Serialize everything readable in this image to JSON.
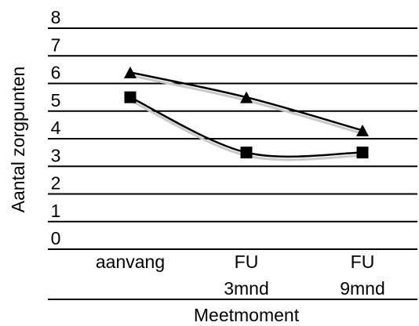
{
  "chart_data": {
    "type": "line",
    "title": "",
    "xlabel": "Meetmoment",
    "ylabel": "Aantal zorgpunten",
    "ylim": [
      0,
      8
    ],
    "yticks": [
      "0",
      "1",
      "2",
      "3",
      "4",
      "5",
      "6",
      "7",
      "8"
    ],
    "grid": true,
    "legend": "none",
    "categories": [
      {
        "lines": [
          "aanvang"
        ]
      },
      {
        "lines": [
          "FU",
          "3mnd"
        ]
      },
      {
        "lines": [
          "FU",
          "9mnd"
        ]
      }
    ],
    "series": [
      {
        "marker": "triangle",
        "values": [
          6.4,
          5.5,
          4.3
        ],
        "color": "#000000",
        "trend_color": "#c8c8c8"
      },
      {
        "marker": "square",
        "values": [
          5.5,
          3.5,
          3.5
        ],
        "color": "#000000",
        "trend_color": "#c8c8c8"
      }
    ]
  }
}
